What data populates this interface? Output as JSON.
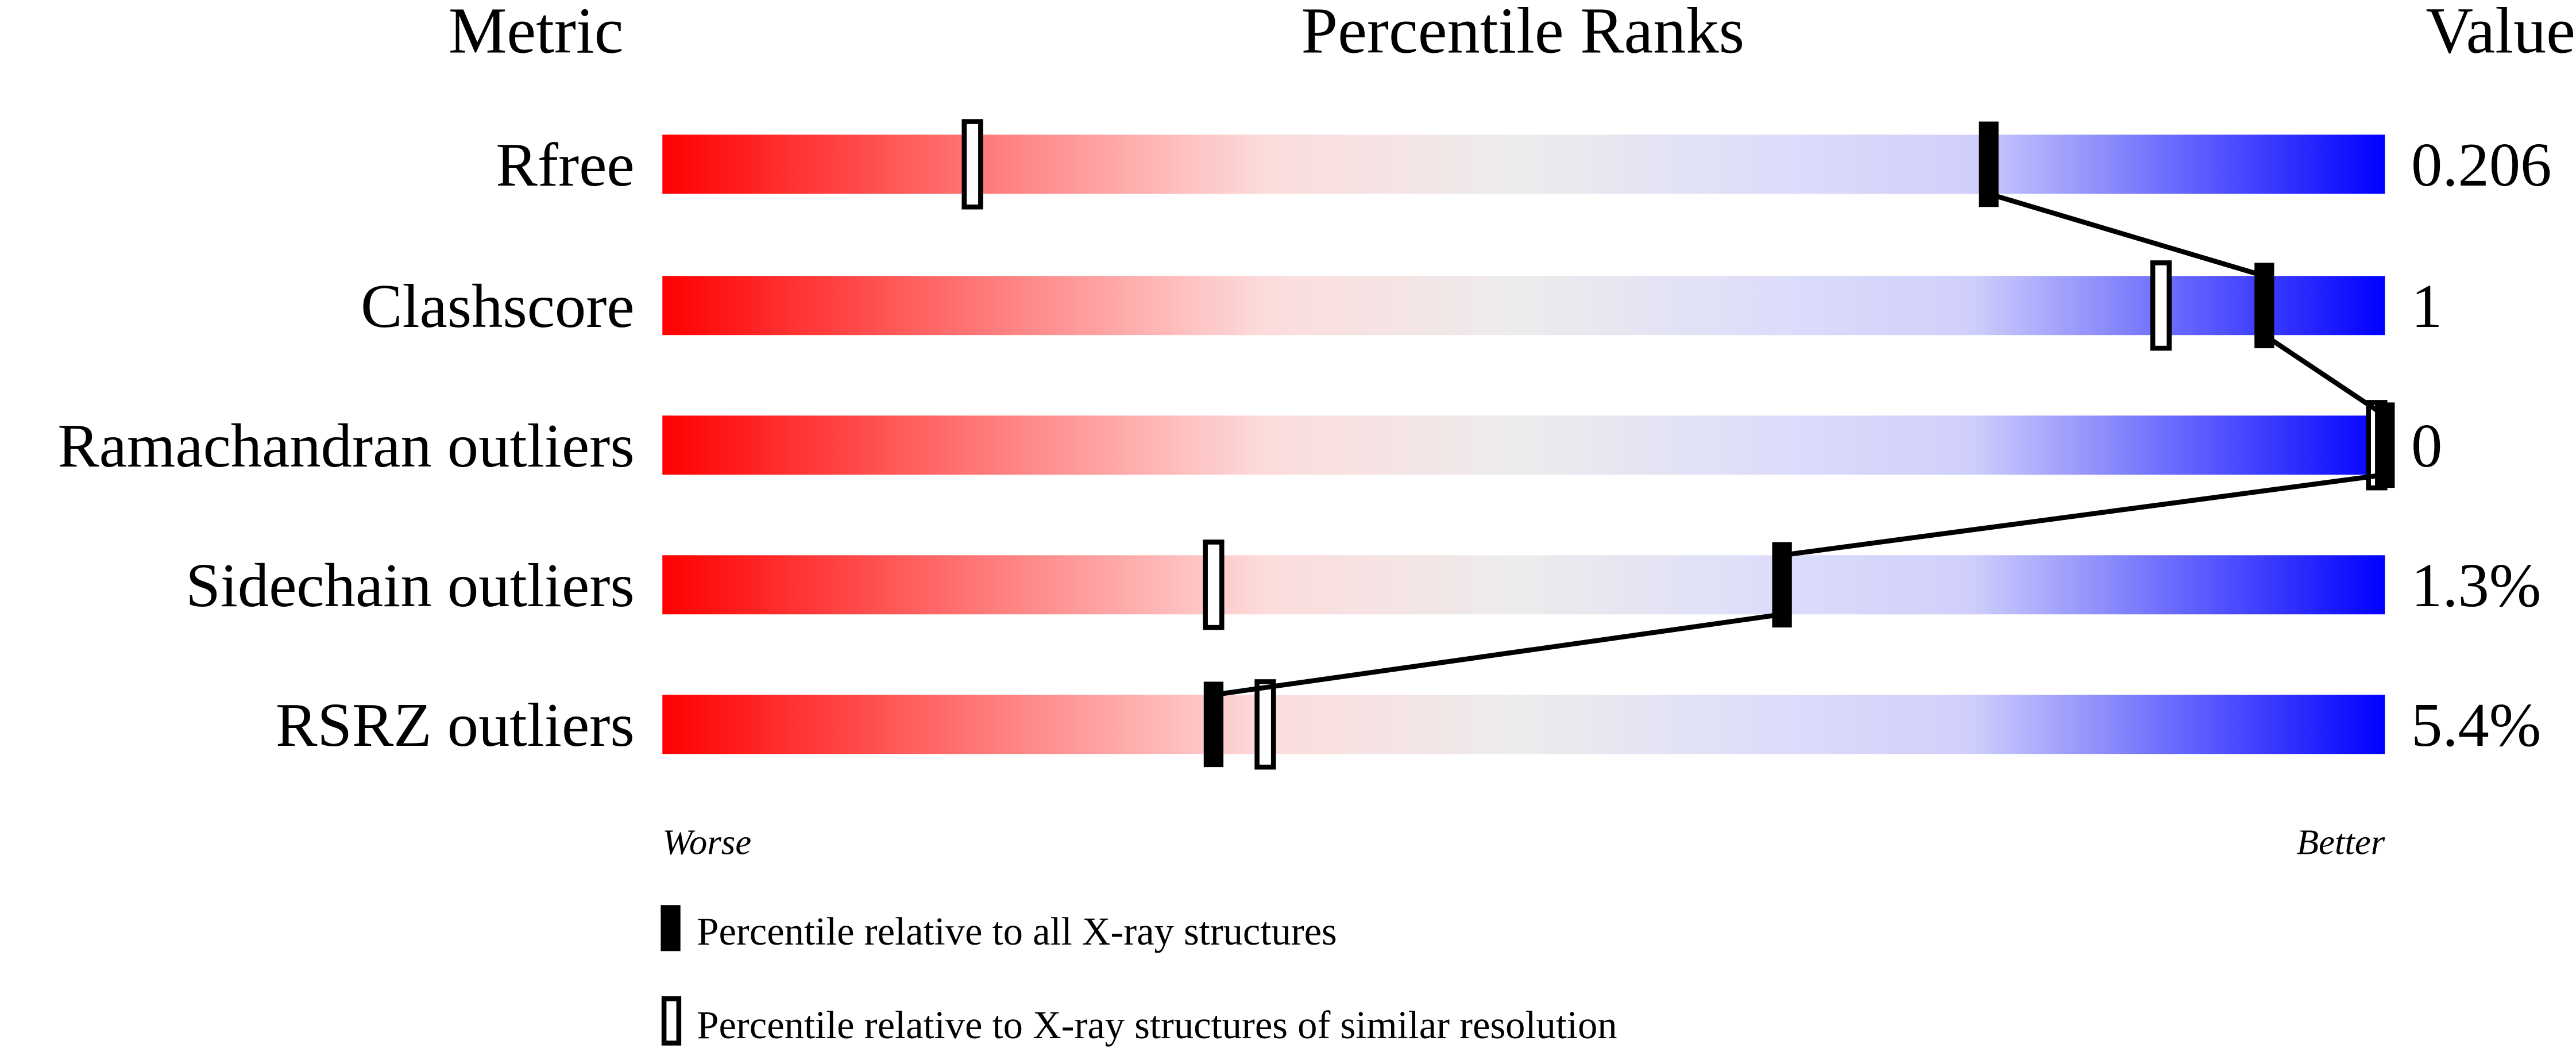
{
  "chart_data": {
    "type": "table",
    "headers": {
      "metric": "Metric",
      "percentile": "Percentile Ranks",
      "value": "Value"
    },
    "axis": {
      "left_label": "Worse",
      "right_label": "Better",
      "range": [
        0,
        100
      ]
    },
    "metrics": [
      {
        "name": "Rfree",
        "value": "0.206",
        "percentile_all": 77,
        "percentile_similar": 18
      },
      {
        "name": "Clashscore",
        "value": "1",
        "percentile_all": 93,
        "percentile_similar": 87
      },
      {
        "name": "Ramachandran outliers",
        "value": "0",
        "percentile_all": 100,
        "percentile_similar": 100
      },
      {
        "name": "Sidechain outliers",
        "value": "1.3%",
        "percentile_all": 65,
        "percentile_similar": 32
      },
      {
        "name": "RSRZ outliers",
        "value": "5.4%",
        "percentile_all": 32,
        "percentile_similar": 35
      }
    ],
    "legend": {
      "all": "Percentile relative to all X-ray structures",
      "similar": "Percentile relative to X-ray structures of similar resolution"
    },
    "colors": {
      "worse": "#ff0000",
      "middle": "#eeeeee",
      "better": "#0000ff",
      "marker": "#000000"
    }
  }
}
